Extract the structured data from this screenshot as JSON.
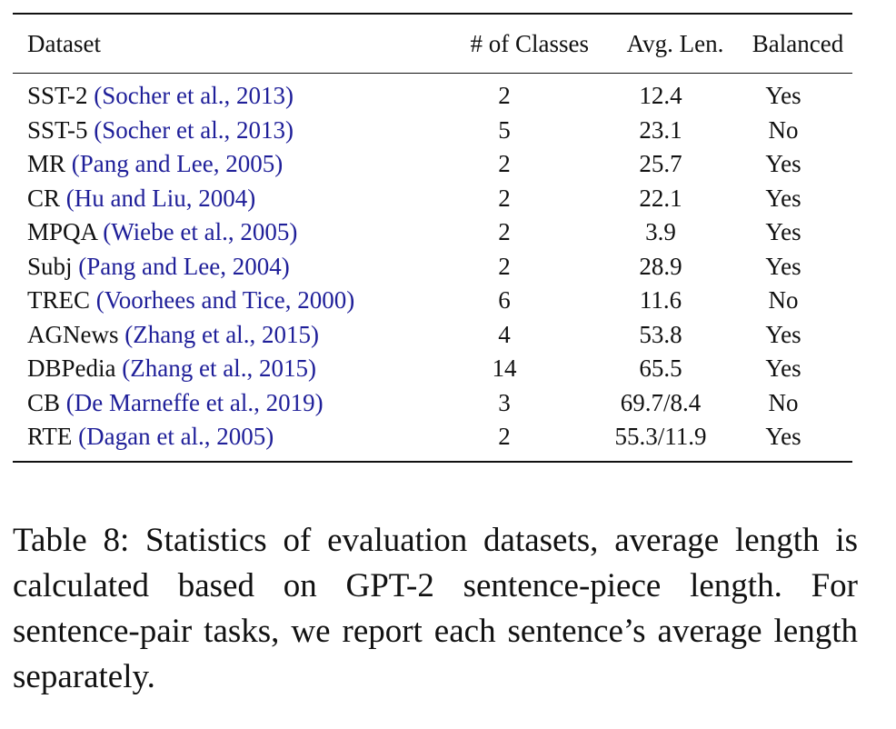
{
  "table": {
    "headers": {
      "dataset": "Dataset",
      "classes": "# of Classes",
      "avg_len": "Avg. Len.",
      "balanced": "Balanced"
    },
    "rows": [
      {
        "name": "SST-2",
        "cite": "(Socher et al., 2013)",
        "classes": "2",
        "avg_len": "12.4",
        "balanced": "Yes"
      },
      {
        "name": "SST-5",
        "cite": "(Socher et al., 2013)",
        "classes": "5",
        "avg_len": "23.1",
        "balanced": "No"
      },
      {
        "name": "MR",
        "cite": "(Pang and Lee, 2005)",
        "classes": "2",
        "avg_len": "25.7",
        "balanced": "Yes"
      },
      {
        "name": "CR",
        "cite": "(Hu and Liu, 2004)",
        "classes": "2",
        "avg_len": "22.1",
        "balanced": "Yes"
      },
      {
        "name": "MPQA",
        "cite": "(Wiebe et al., 2005)",
        "classes": "2",
        "avg_len": "3.9",
        "balanced": "Yes"
      },
      {
        "name": "Subj",
        "cite": "(Pang and Lee, 2004)",
        "classes": "2",
        "avg_len": "28.9",
        "balanced": "Yes"
      },
      {
        "name": "TREC",
        "cite": "(Voorhees and Tice, 2000)",
        "classes": "6",
        "avg_len": "11.6",
        "balanced": "No"
      },
      {
        "name": "AGNews",
        "cite": "(Zhang et al., 2015)",
        "classes": "4",
        "avg_len": "53.8",
        "balanced": "Yes"
      },
      {
        "name": "DBPedia",
        "cite": "(Zhang et al., 2015)",
        "classes": "14",
        "avg_len": "65.5",
        "balanced": "Yes"
      },
      {
        "name": "CB",
        "cite": "(De Marneffe et al., 2019)",
        "classes": "3",
        "avg_len": "69.7/8.4",
        "balanced": "No"
      },
      {
        "name": "RTE",
        "cite": "(Dagan et al., 2005)",
        "classes": "2",
        "avg_len": "55.3/11.9",
        "balanced": "Yes"
      }
    ]
  },
  "caption": "Table 8:  Statistics of evaluation datasets, average length is calculated based on GPT-2 sentence-piece length.  For sentence-pair tasks, we report each sentence’s average length separately.",
  "colors": {
    "citation": "#1f1f99",
    "text": "#111111"
  }
}
